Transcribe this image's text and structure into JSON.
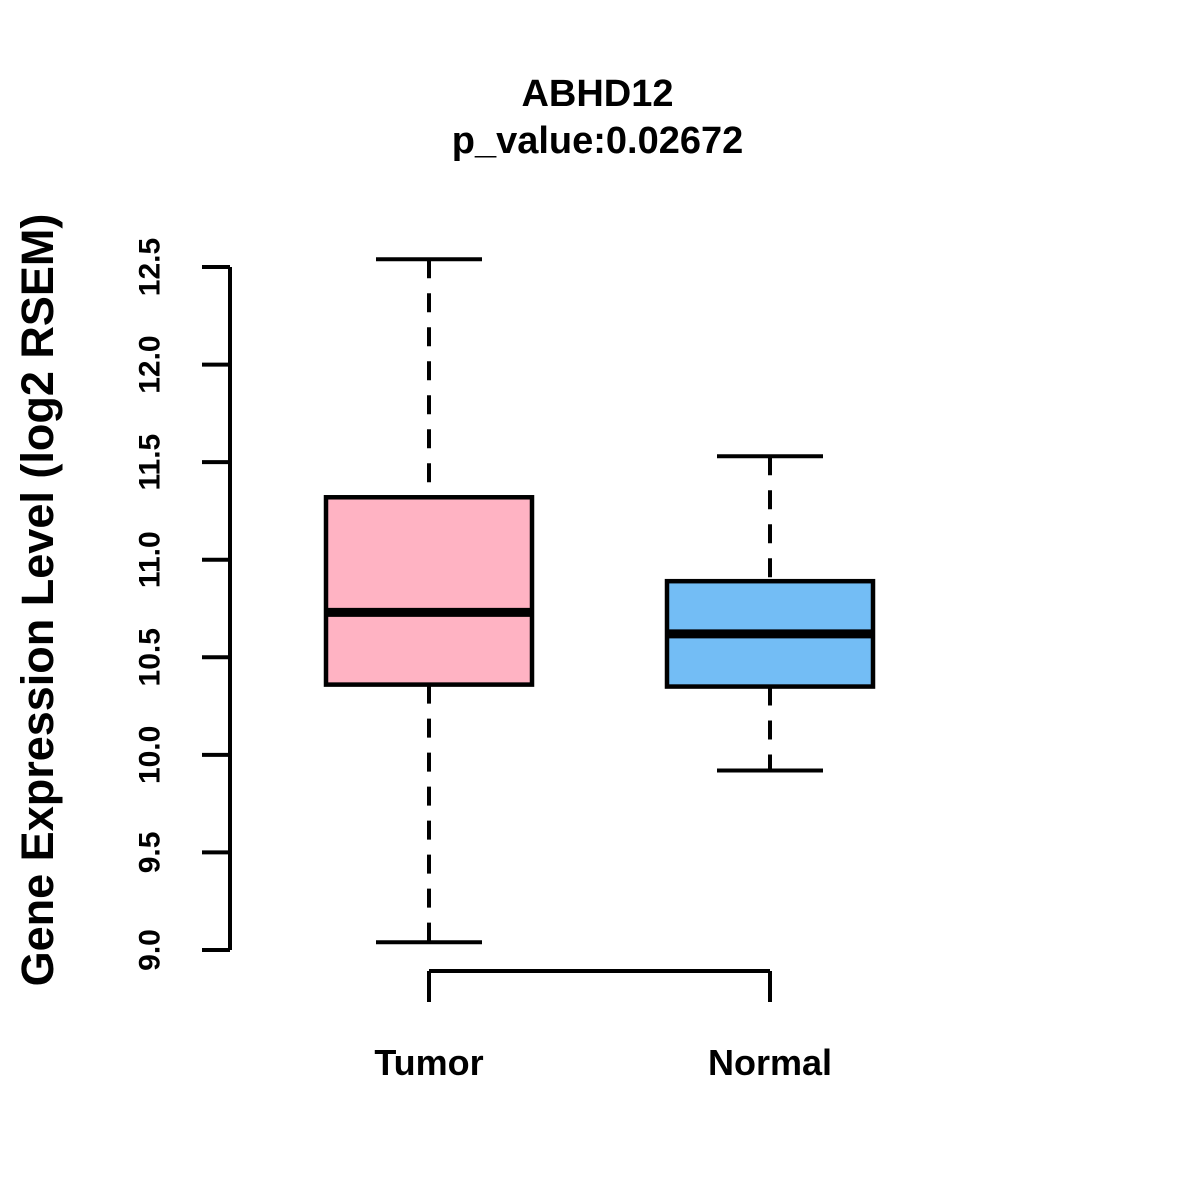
{
  "chart_data": {
    "type": "box",
    "title": "ABHD12",
    "subtitle": "p_value:0.02672",
    "ylabel": "Gene Expression Level (log2 RSEM)",
    "xlabel": "",
    "ylim": [
      9.0,
      12.5
    ],
    "ytick_labels": [
      "9.0",
      "9.5",
      "10.0",
      "10.5",
      "11.0",
      "11.5",
      "12.0",
      "12.5"
    ],
    "ytick_values": [
      9.0,
      9.5,
      10.0,
      10.5,
      11.0,
      11.5,
      12.0,
      12.5
    ],
    "grid": false,
    "legend": "none",
    "stroke_color": "#000000",
    "background_color": "#ffffff",
    "groups": [
      {
        "label": "Tumor",
        "fill": "#FFB3C3",
        "stats": {
          "whisker_low": 9.04,
          "q1": 10.36,
          "median": 10.73,
          "q3": 11.32,
          "whisker_high": 12.54
        }
      },
      {
        "label": "Normal",
        "fill": "#73BDF5",
        "stats": {
          "whisker_low": 9.92,
          "q1": 10.35,
          "median": 10.62,
          "q3": 10.89,
          "whisker_high": 11.53
        }
      }
    ]
  }
}
